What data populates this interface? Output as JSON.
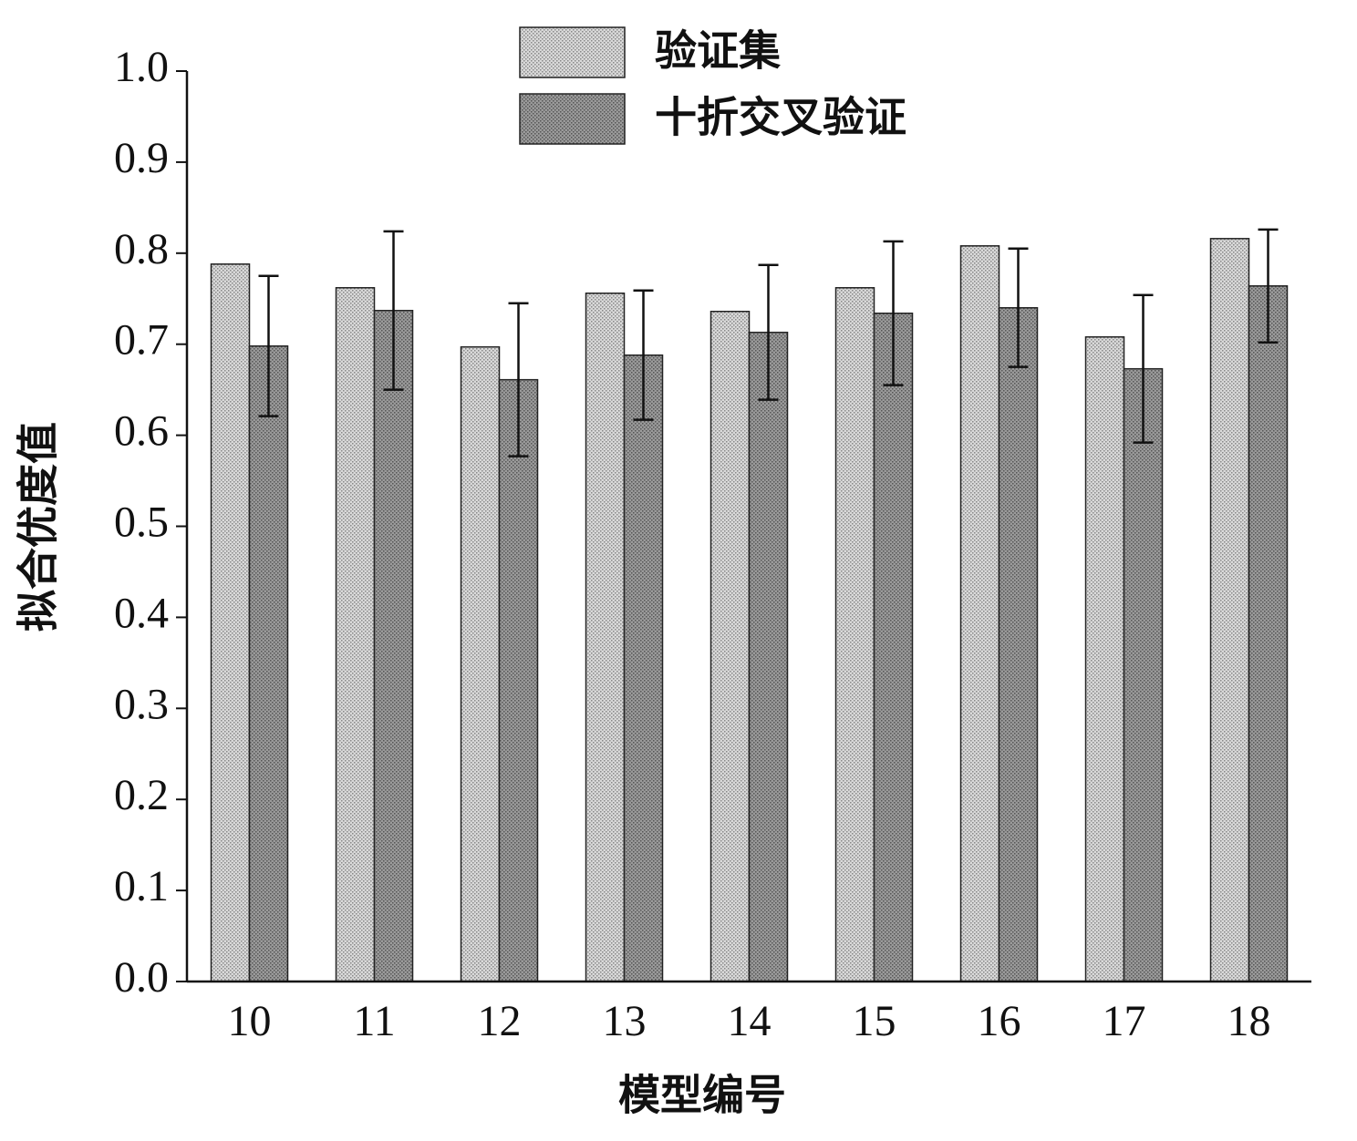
{
  "chart_data": {
    "type": "bar",
    "xlabel": "模型编号",
    "ylabel": "拟合优度值",
    "categories": [
      "10",
      "11",
      "12",
      "13",
      "14",
      "15",
      "16",
      "17",
      "18"
    ],
    "series": [
      {
        "name": "验证集",
        "color": "#d9d9d9",
        "values": [
          0.788,
          0.762,
          0.697,
          0.756,
          0.736,
          0.762,
          0.808,
          0.708,
          0.816
        ]
      },
      {
        "name": "十折交叉验证",
        "color": "#9a9a9a",
        "values": [
          0.698,
          0.737,
          0.661,
          0.688,
          0.713,
          0.734,
          0.74,
          0.673,
          0.764
        ],
        "errors": [
          0.077,
          0.087,
          0.084,
          0.071,
          0.074,
          0.079,
          0.065,
          0.081,
          0.062
        ]
      }
    ],
    "ylim": [
      0,
      1.0
    ],
    "yticks": [
      {
        "value": 0,
        "label": "0.0"
      },
      0.1,
      0.2,
      0.3,
      0.4,
      0.5,
      0.6,
      0.7,
      0.8,
      0.9,
      {
        "value": 1.0,
        "label": "1.0"
      }
    ],
    "legend": "top"
  }
}
